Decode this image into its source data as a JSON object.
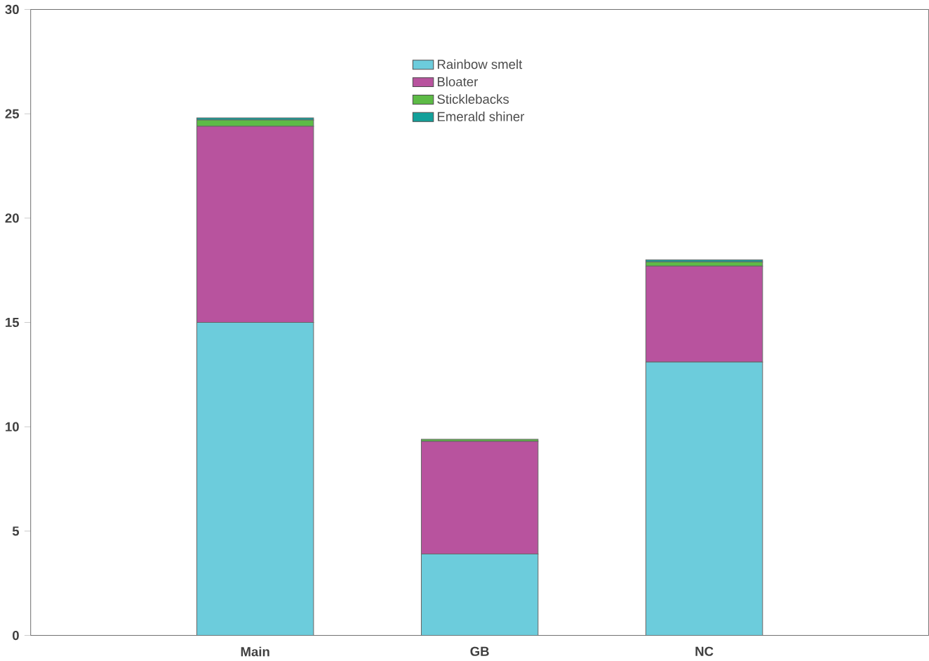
{
  "chart_data": {
    "type": "bar",
    "stacked": true,
    "categories": [
      "Main",
      "GB",
      "NC"
    ],
    "series": [
      {
        "name": "Rainbow smelt",
        "color": "#6cccdc",
        "values": [
          15.0,
          3.9,
          13.1
        ]
      },
      {
        "name": "Bloater",
        "color": "#b8539e",
        "values": [
          9.4,
          5.4,
          4.6
        ]
      },
      {
        "name": "Sticklebacks",
        "color": "#5dbb46",
        "values": [
          0.3,
          0.1,
          0.2
        ]
      },
      {
        "name": "Emerald shiner",
        "color": "#12a09a",
        "values": [
          0.1,
          null,
          0.1
        ]
      }
    ],
    "ylim": [
      0,
      30
    ],
    "yticks": [
      0,
      5,
      10,
      15,
      20,
      25,
      30
    ],
    "legend": "top right"
  }
}
